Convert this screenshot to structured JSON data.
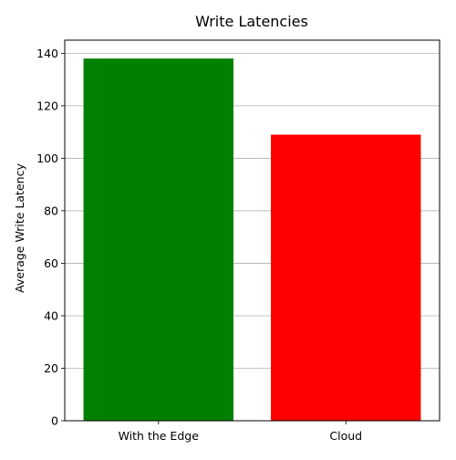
{
  "chart_data": {
    "type": "bar",
    "title": "Write Latencies",
    "xlabel": "",
    "ylabel": "Average Write Latency",
    "categories": [
      "With the Edge",
      "Cloud"
    ],
    "values": [
      138,
      109
    ],
    "colors": [
      "#008000",
      "#ff0000"
    ],
    "ylim": [
      0,
      145
    ],
    "yticks": [
      0,
      20,
      40,
      60,
      80,
      100,
      120,
      140
    ],
    "grid": "y-axis horizontal lines",
    "legend": "none"
  }
}
